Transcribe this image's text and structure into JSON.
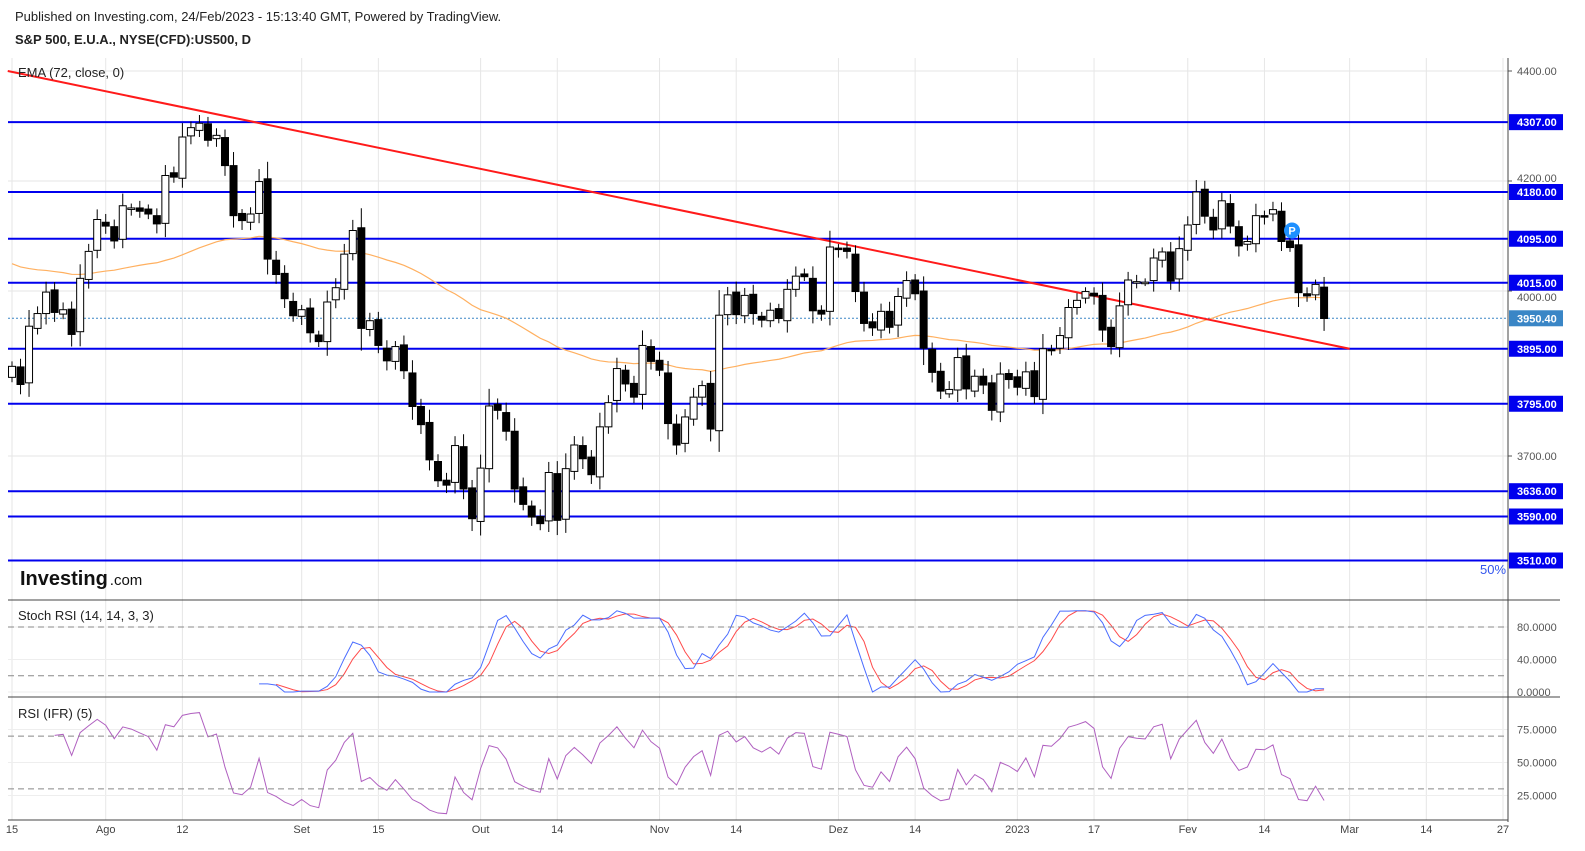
{
  "header": {
    "published": "Published on Investing.com, 24/Feb/2023 - 15:13:40 GMT, Powered by TradingView.",
    "symbol": "S&P 500, E.U.A., NYSE(CFD):US500, D"
  },
  "indicators": {
    "ema_label": "EMA (72, close, 0)",
    "stoch_label": "Stoch RSI (14, 14, 3, 3)",
    "rsi_label": "RSI (IFR) (5)"
  },
  "logo": {
    "brand": "Investing",
    "suffix": ".com"
  },
  "zoom_label": "50%",
  "marker_label": "P",
  "colors": {
    "level": "#0000ee",
    "trend": "#ff1a1a",
    "ema": "#ffb060",
    "current": "#3a86c6",
    "stoch_k": "#4a6cff",
    "stoch_d": "#ff4a4a",
    "rsi": "#b060c0",
    "marker": "#1e90ff"
  },
  "chart_data": {
    "type": "candlestick",
    "title": "S&P 500, E.U.A., NYSE(CFD):US500, D",
    "ylim": [
      3490,
      4420
    ],
    "price_ticks": [
      "4400.00",
      "4200.00",
      "4000.00",
      "3700.00"
    ],
    "levels": [
      "4307.00",
      "4180.00",
      "4095.00",
      "4015.00",
      "3895.00",
      "3795.00",
      "3636.00",
      "3590.00",
      "3510.00"
    ],
    "current_price": "3950.40",
    "trendline": [
      {
        "date": "2022-07-14",
        "price": 4400
      },
      {
        "date": "2023-03-01",
        "price": 3895
      }
    ],
    "ema_period": 72,
    "ema_seed": 4055,
    "marker_date": "2023-02-17",
    "marker_price": 4110,
    "x_ticks": [
      {
        "date": "2022-07-15",
        "label": "15"
      },
      {
        "date": "2022-08-01",
        "label": "Ago"
      },
      {
        "date": "2022-08-12",
        "label": "12"
      },
      {
        "date": "2022-09-01",
        "label": "Set"
      },
      {
        "date": "2022-09-15",
        "label": "15"
      },
      {
        "date": "2022-10-03",
        "label": "Out"
      },
      {
        "date": "2022-10-14",
        "label": "14"
      },
      {
        "date": "2022-11-01",
        "label": "Nov"
      },
      {
        "date": "2022-11-14",
        "label": "14"
      },
      {
        "date": "2022-12-01",
        "label": "Dez"
      },
      {
        "date": "2022-12-14",
        "label": "14"
      },
      {
        "date": "2023-01-03",
        "label": "2023"
      },
      {
        "date": "2023-01-17",
        "label": "17"
      },
      {
        "date": "2023-02-01",
        "label": "Fev"
      },
      {
        "date": "2023-02-14",
        "label": "14"
      },
      {
        "date": "2023-03-01",
        "label": "Mar",
        "future_bars": 3
      },
      {
        "date": "2023-03-14",
        "label": "14",
        "future_bars": 12
      },
      {
        "date": "2023-03-27",
        "label": "27",
        "future_bars": 21
      }
    ],
    "stoch_ticks": [
      "80.0000",
      "40.0000",
      "0.0000"
    ],
    "stoch_bands": [
      80,
      20
    ],
    "rsi_ticks": [
      "75.0000",
      "50.0000",
      "25.0000"
    ],
    "rsi_bands": [
      70,
      30
    ],
    "dates": [
      "2022-07-15",
      "2022-07-18",
      "2022-07-19",
      "2022-07-20",
      "2022-07-21",
      "2022-07-22",
      "2022-07-25",
      "2022-07-26",
      "2022-07-27",
      "2022-07-28",
      "2022-07-29",
      "2022-08-01",
      "2022-08-02",
      "2022-08-03",
      "2022-08-04",
      "2022-08-05",
      "2022-08-08",
      "2022-08-09",
      "2022-08-10",
      "2022-08-11",
      "2022-08-12",
      "2022-08-15",
      "2022-08-16",
      "2022-08-17",
      "2022-08-18",
      "2022-08-19",
      "2022-08-22",
      "2022-08-23",
      "2022-08-24",
      "2022-08-25",
      "2022-08-26",
      "2022-08-29",
      "2022-08-30",
      "2022-08-31",
      "2022-09-01",
      "2022-09-02",
      "2022-09-06",
      "2022-09-07",
      "2022-09-08",
      "2022-09-09",
      "2022-09-12",
      "2022-09-13",
      "2022-09-14",
      "2022-09-15",
      "2022-09-16",
      "2022-09-19",
      "2022-09-20",
      "2022-09-21",
      "2022-09-22",
      "2022-09-23",
      "2022-09-26",
      "2022-09-27",
      "2022-09-28",
      "2022-09-29",
      "2022-09-30",
      "2022-10-03",
      "2022-10-04",
      "2022-10-05",
      "2022-10-06",
      "2022-10-07",
      "2022-10-10",
      "2022-10-11",
      "2022-10-12",
      "2022-10-13",
      "2022-10-14",
      "2022-10-17",
      "2022-10-18",
      "2022-10-19",
      "2022-10-20",
      "2022-10-21",
      "2022-10-24",
      "2022-10-25",
      "2022-10-26",
      "2022-10-27",
      "2022-10-28",
      "2022-10-31",
      "2022-11-01",
      "2022-11-02",
      "2022-11-03",
      "2022-11-04",
      "2022-11-07",
      "2022-11-08",
      "2022-11-09",
      "2022-11-10",
      "2022-11-11",
      "2022-11-14",
      "2022-11-15",
      "2022-11-16",
      "2022-11-17",
      "2022-11-18",
      "2022-11-21",
      "2022-11-22",
      "2022-11-23",
      "2022-11-25",
      "2022-11-28",
      "2022-11-29",
      "2022-11-30",
      "2022-12-01",
      "2022-12-02",
      "2022-12-05",
      "2022-12-06",
      "2022-12-07",
      "2022-12-08",
      "2022-12-09",
      "2022-12-12",
      "2022-12-13",
      "2022-12-14",
      "2022-12-15",
      "2022-12-16",
      "2022-12-19",
      "2022-12-20",
      "2022-12-21",
      "2022-12-22",
      "2022-12-23",
      "2022-12-27",
      "2022-12-28",
      "2022-12-29",
      "2022-12-30",
      "2023-01-03",
      "2023-01-04",
      "2023-01-05",
      "2023-01-06",
      "2023-01-09",
      "2023-01-10",
      "2023-01-11",
      "2023-01-12",
      "2023-01-13",
      "2023-01-17",
      "2023-01-18",
      "2023-01-19",
      "2023-01-20",
      "2023-01-23",
      "2023-01-24",
      "2023-01-25",
      "2023-01-26",
      "2023-01-27",
      "2023-01-30",
      "2023-01-31",
      "2023-02-01",
      "2023-02-02",
      "2023-02-03",
      "2023-02-06",
      "2023-02-07",
      "2023-02-08",
      "2023-02-09",
      "2023-02-10",
      "2023-02-13",
      "2023-02-14",
      "2023-02-15",
      "2023-02-16",
      "2023-02-17",
      "2023-02-21",
      "2023-02-22",
      "2023-02-23",
      "2023-02-24"
    ],
    "close": [
      3863,
      3830,
      3936,
      3959,
      3998,
      3961,
      3966,
      3921,
      4023,
      4072,
      4130,
      4118,
      4091,
      4155,
      4151,
      4145,
      4140,
      4122,
      4210,
      4207,
      4280,
      4297,
      4305,
      4274,
      4283,
      4228,
      4137,
      4128,
      4140,
      4199,
      4058,
      4030,
      3986,
      3955,
      3966,
      3924,
      3908,
      3980,
      4006,
      4067,
      4110,
      3932,
      3946,
      3901,
      3873,
      3899,
      3855,
      3790,
      3757,
      3693,
      3655,
      3647,
      3719,
      3640,
      3586,
      3678,
      3791,
      3783,
      3745,
      3640,
      3612,
      3589,
      3577,
      3670,
      3583,
      3677,
      3720,
      3695,
      3666,
      3753,
      3797,
      3859,
      3831,
      3807,
      3901,
      3872,
      3856,
      3759,
      3720,
      3771,
      3807,
      3828,
      3749,
      3956,
      3993,
      3957,
      3992,
      3959,
      3947,
      3965,
      3950,
      4003,
      4027,
      4026,
      3964,
      3958,
      4080,
      4076,
      4072,
      3999,
      3941,
      3933,
      3963,
      3934,
      3990,
      4019,
      3995,
      3896,
      3852,
      3818,
      3821,
      3879,
      3822,
      3845,
      3829,
      3783,
      3849,
      3839,
      3825,
      3853,
      3808,
      3895,
      3893,
      3919,
      3970,
      3983,
      3999,
      3991,
      3929,
      3899,
      3973,
      4020,
      4017,
      4016,
      4060,
      4071,
      4018,
      4077,
      4120,
      4180,
      4136,
      4111,
      4164,
      4118,
      4082,
      4090,
      4137,
      4136,
      4148,
      4090,
      4079,
      3997,
      3991,
      4012,
      3950
    ]
  }
}
